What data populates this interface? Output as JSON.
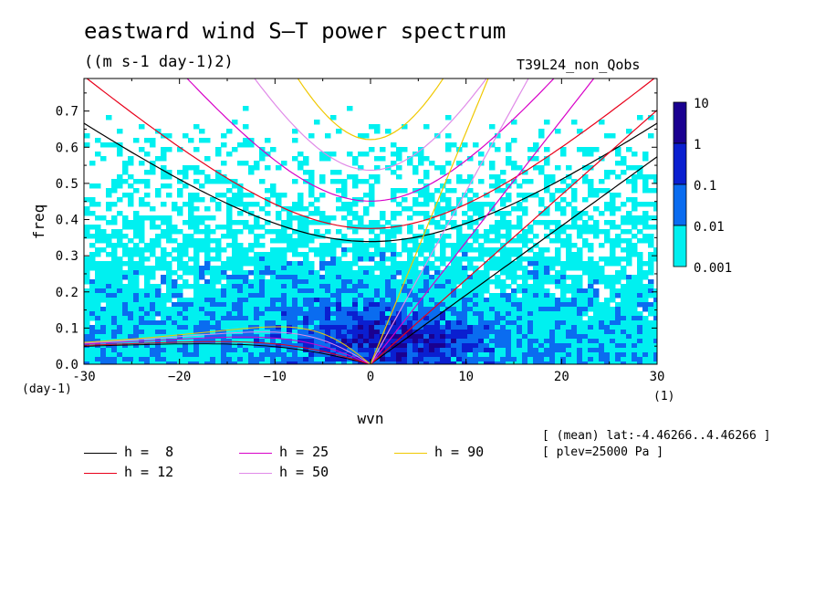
{
  "title": "eastward wind S–T power spectrum",
  "subtitle": "((m s-1 day-1)2)",
  "run_name": "T39L24_non_Qobs",
  "meta": {
    "line1": "[ (mean) lat:-4.46266..4.46266 ]",
    "line2": "[ plev=25000 Pa ]"
  },
  "chart_data": {
    "type": "heatmap",
    "xlabel": "wvn",
    "ylabel": "freq",
    "x_unit": "(1)",
    "y_unit": "(day-1)",
    "xlim": [
      -30,
      30
    ],
    "ylim": [
      0,
      0.79
    ],
    "xticks": [
      -30,
      -20,
      -10,
      0,
      10,
      20,
      30
    ],
    "xtick_labels": [
      "-30",
      "−20",
      "−10",
      "0",
      "10",
      "20",
      "30"
    ],
    "yticks": [
      0.0,
      0.1,
      0.2,
      0.3,
      0.4,
      0.5,
      0.6,
      0.7
    ],
    "ytick_labels": [
      "0.0",
      "0.1",
      "0.2",
      "0.3",
      "0.4",
      "0.5",
      "0.6",
      "0.7"
    ],
    "colorbar": {
      "levels": [
        "0.001",
        "0.01",
        "0.1",
        "1",
        "10"
      ],
      "colors": [
        "#00f0f0",
        "#0a6cf0",
        "#0a1fd0",
        "#1a0090"
      ]
    },
    "dispersion_curves": [
      {
        "label": "h =  8",
        "h": 8,
        "color": "#000000"
      },
      {
        "label": "h = 12",
        "h": 12,
        "color": "#e8001a"
      },
      {
        "label": "h = 25",
        "h": 25,
        "color": "#d800c8"
      },
      {
        "label": "h = 50",
        "h": 50,
        "color": "#e08ae8"
      },
      {
        "label": "h = 90",
        "h": 90,
        "color": "#f0c800"
      }
    ]
  }
}
